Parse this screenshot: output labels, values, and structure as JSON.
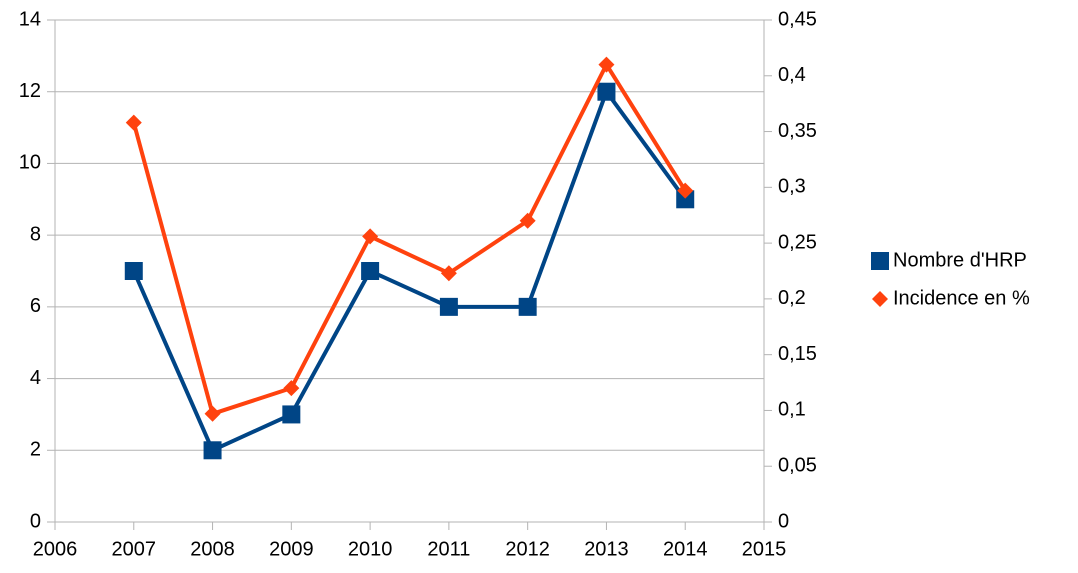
{
  "chart_data": {
    "type": "line",
    "x": [
      2007,
      2008,
      2009,
      2010,
      2011,
      2012,
      2013,
      2014
    ],
    "series": [
      {
        "name": "Nombre d'HRP",
        "color": "#004586",
        "marker": "square",
        "values": [
          7,
          2,
          3,
          7,
          6,
          6,
          12,
          9
        ]
      },
      {
        "name": "Incidence en %",
        "color": "#ff420e",
        "marker": "diamond",
        "axis": "y2",
        "values": [
          0.358,
          0.097,
          0.12,
          0.256,
          0.223,
          0.27,
          0.41,
          0.297
        ]
      }
    ],
    "xlim": [
      2006,
      2015
    ],
    "xticks": [
      2006,
      2007,
      2008,
      2009,
      2010,
      2011,
      2012,
      2013,
      2014,
      2015
    ],
    "ylim": [
      0,
      14
    ],
    "yticks": [
      0,
      2,
      4,
      6,
      8,
      10,
      12,
      14
    ],
    "y2lim": [
      0,
      0.45
    ],
    "y2ticks": [
      0,
      {
        "value": 0.05,
        "label": "0,05"
      },
      {
        "value": 0.1,
        "label": "0,1"
      },
      {
        "value": 0.15,
        "label": "0,15"
      },
      {
        "value": 0.2,
        "label": "0,2"
      },
      {
        "value": 0.25,
        "label": "0,25"
      },
      {
        "value": 0.3,
        "label": "0,3"
      },
      {
        "value": 0.35,
        "label": "0,35"
      },
      {
        "value": 0.4,
        "label": "0,4"
      },
      {
        "value": 0.45,
        "label": "0,45"
      }
    ],
    "grid": true,
    "legend": "right"
  }
}
